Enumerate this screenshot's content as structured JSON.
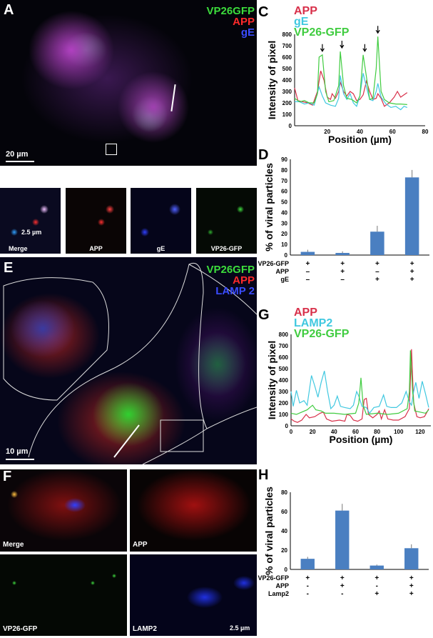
{
  "panels": {
    "A": {
      "label": "A",
      "legend": [
        "VP26GFP",
        "APP",
        "gE"
      ],
      "legend_colors": [
        "#3cdc3c",
        "#ff2a2a",
        "#3a4cff"
      ],
      "scale": "20 µm"
    },
    "B": {
      "label": "B",
      "tiles": [
        "Merge",
        "APP",
        "gE",
        "VP26-GFP"
      ],
      "scale": "2.5 µm"
    },
    "E": {
      "label": "E",
      "legend": [
        "VP26GFP",
        "APP",
        "LAMP 2"
      ],
      "legend_colors": [
        "#3cdc3c",
        "#ff2a2a",
        "#3a4cff"
      ],
      "scale": "10 µm"
    },
    "F": {
      "label": "F",
      "tiles": [
        "Merge",
        "APP",
        "VP26-GFP",
        "LAMP2"
      ],
      "scale": "2.5 µm"
    },
    "C": {
      "label": "C"
    },
    "D": {
      "label": "D"
    },
    "G": {
      "label": "G"
    },
    "H": {
      "label": "H"
    }
  },
  "chart_data": [
    {
      "id": "C",
      "type": "line",
      "xlabel": "Position (µm)",
      "ylabel": "Intensity of pixel",
      "xlim": [
        0,
        80
      ],
      "ylim": [
        0,
        800
      ],
      "xticks": [
        20,
        40,
        60,
        80
      ],
      "yticks": [
        0,
        100,
        200,
        300,
        400,
        500,
        600,
        700,
        800
      ],
      "legend_placement": "top-left",
      "annotations": "arrows at peaks x≈17,29,43,51",
      "arrow_x": [
        17,
        29,
        43,
        51
      ],
      "series": [
        {
          "name": "APP",
          "color": "#d8304a",
          "points": [
            [
              0,
              330
            ],
            [
              2,
              220
            ],
            [
              5,
              210
            ],
            [
              8,
              200
            ],
            [
              11,
              180
            ],
            [
              14,
              300
            ],
            [
              16,
              480
            ],
            [
              18,
              400
            ],
            [
              20,
              250
            ],
            [
              22,
              230
            ],
            [
              23,
              280
            ],
            [
              25,
              240
            ],
            [
              27,
              300
            ],
            [
              28,
              380
            ],
            [
              30,
              300
            ],
            [
              32,
              260
            ],
            [
              34,
              300
            ],
            [
              36,
              280
            ],
            [
              38,
              220
            ],
            [
              40,
              230
            ],
            [
              42,
              270
            ],
            [
              44,
              390
            ],
            [
              46,
              300
            ],
            [
              48,
              230
            ],
            [
              50,
              240
            ],
            [
              51,
              280
            ],
            [
              53,
              240
            ],
            [
              55,
              170
            ],
            [
              58,
              200
            ],
            [
              61,
              250
            ],
            [
              63,
              300
            ],
            [
              65,
              250
            ],
            [
              67,
              270
            ],
            [
              69,
              290
            ]
          ]
        },
        {
          "name": "gE",
          "color": "#40c8e0",
          "points": [
            [
              0,
              210
            ],
            [
              3,
              210
            ],
            [
              6,
              190
            ],
            [
              9,
              200
            ],
            [
              12,
              180
            ],
            [
              15,
              340
            ],
            [
              17,
              260
            ],
            [
              19,
              200
            ],
            [
              22,
              180
            ],
            [
              25,
              170
            ],
            [
              27,
              240
            ],
            [
              28,
              440
            ],
            [
              30,
              280
            ],
            [
              32,
              230
            ],
            [
              34,
              280
            ],
            [
              36,
              200
            ],
            [
              38,
              170
            ],
            [
              40,
              260
            ],
            [
              42,
              460
            ],
            [
              44,
              340
            ],
            [
              46,
              230
            ],
            [
              48,
              220
            ],
            [
              50,
              300
            ],
            [
              51,
              370
            ],
            [
              53,
              250
            ],
            [
              56,
              190
            ],
            [
              59,
              160
            ],
            [
              62,
              170
            ],
            [
              65,
              140
            ],
            [
              67,
              170
            ],
            [
              69,
              160
            ]
          ]
        },
        {
          "name": "VP26-GFP",
          "color": "#40cc40",
          "points": [
            [
              0,
              240
            ],
            [
              3,
              210
            ],
            [
              6,
              220
            ],
            [
              9,
              200
            ],
            [
              12,
              200
            ],
            [
              14,
              280
            ],
            [
              15,
              600
            ],
            [
              17,
              620
            ],
            [
              19,
              300
            ],
            [
              21,
              210
            ],
            [
              24,
              220
            ],
            [
              27,
              350
            ],
            [
              28,
              650
            ],
            [
              30,
              350
            ],
            [
              32,
              240
            ],
            [
              35,
              230
            ],
            [
              38,
              200
            ],
            [
              40,
              260
            ],
            [
              42,
              620
            ],
            [
              44,
              430
            ],
            [
              46,
              230
            ],
            [
              48,
              240
            ],
            [
              50,
              500
            ],
            [
              51,
              780
            ],
            [
              53,
              300
            ],
            [
              55,
              230
            ],
            [
              58,
              200
            ],
            [
              62,
              190
            ],
            [
              65,
              190
            ],
            [
              69,
              185
            ]
          ]
        }
      ]
    },
    {
      "id": "D",
      "type": "bar",
      "ylabel": "% of viral particles",
      "ylim": [
        0,
        90
      ],
      "yticks": [
        0,
        10,
        20,
        30,
        40,
        50,
        60,
        70,
        80,
        90
      ],
      "bar_color": "#4a7fc1",
      "values": [
        3,
        2,
        22,
        73
      ],
      "errors": [
        2,
        1.5,
        5.5,
        7
      ],
      "conditions": [
        {
          "name": "VP26-GFP",
          "signs": [
            "+",
            "+",
            "+",
            "+"
          ]
        },
        {
          "name": "APP",
          "signs": [
            "–",
            "+",
            "–",
            "+"
          ]
        },
        {
          "name": "gE",
          "signs": [
            "–",
            "–",
            "+",
            "+"
          ]
        }
      ]
    },
    {
      "id": "G",
      "type": "line",
      "xlabel": "Position (µm)",
      "ylabel": "Intensity of pixel",
      "xlim": [
        0,
        130
      ],
      "ylim": [
        0,
        800
      ],
      "xticks": [
        0,
        20,
        40,
        60,
        80,
        100,
        120
      ],
      "yticks": [
        0,
        100,
        200,
        300,
        400,
        500,
        600,
        700,
        800
      ],
      "legend_placement": "top-left",
      "series": [
        {
          "name": "APP",
          "color": "#d8304a",
          "points": [
            [
              0,
              60
            ],
            [
              3,
              40
            ],
            [
              6,
              30
            ],
            [
              10,
              50
            ],
            [
              14,
              100
            ],
            [
              17,
              70
            ],
            [
              22,
              80
            ],
            [
              27,
              110
            ],
            [
              30,
              120
            ],
            [
              33,
              60
            ],
            [
              38,
              40
            ],
            [
              45,
              50
            ],
            [
              50,
              40
            ],
            [
              52,
              100
            ],
            [
              55,
              90
            ],
            [
              58,
              50
            ],
            [
              62,
              40
            ],
            [
              66,
              60
            ],
            [
              68,
              230
            ],
            [
              70,
              240
            ],
            [
              72,
              100
            ],
            [
              76,
              70
            ],
            [
              80,
              100
            ],
            [
              82,
              130
            ],
            [
              84,
              60
            ],
            [
              87,
              140
            ],
            [
              90,
              60
            ],
            [
              95,
              50
            ],
            [
              100,
              50
            ],
            [
              106,
              80
            ],
            [
              110,
              150
            ],
            [
              112,
              670
            ],
            [
              114,
              200
            ],
            [
              117,
              80
            ],
            [
              120,
              70
            ],
            [
              124,
              80
            ],
            [
              127,
              130
            ],
            [
              128,
              150
            ]
          ]
        },
        {
          "name": "LAMP2",
          "color": "#40c8e0",
          "points": [
            [
              0,
              300
            ],
            [
              2,
              170
            ],
            [
              5,
              310
            ],
            [
              8,
              200
            ],
            [
              12,
              220
            ],
            [
              15,
              180
            ],
            [
              19,
              440
            ],
            [
              22,
              350
            ],
            [
              25,
              250
            ],
            [
              28,
              380
            ],
            [
              31,
              480
            ],
            [
              34,
              300
            ],
            [
              37,
              150
            ],
            [
              40,
              180
            ],
            [
              43,
              260
            ],
            [
              46,
              170
            ],
            [
              50,
              160
            ],
            [
              55,
              150
            ],
            [
              58,
              180
            ],
            [
              61,
              300
            ],
            [
              63,
              260
            ],
            [
              66,
              170
            ],
            [
              70,
              160
            ],
            [
              73,
              110
            ],
            [
              77,
              160
            ],
            [
              82,
              170
            ],
            [
              86,
              270
            ],
            [
              89,
              170
            ],
            [
              93,
              160
            ],
            [
              98,
              160
            ],
            [
              103,
              200
            ],
            [
              107,
              300
            ],
            [
              110,
              210
            ],
            [
              112,
              180
            ],
            [
              114,
              300
            ],
            [
              116,
              380
            ],
            [
              119,
              240
            ],
            [
              122,
              390
            ],
            [
              125,
              280
            ],
            [
              128,
              160
            ]
          ]
        },
        {
          "name": "VP26-GFP",
          "color": "#40cc40",
          "points": [
            [
              0,
              110
            ],
            [
              5,
              100
            ],
            [
              10,
              120
            ],
            [
              15,
              140
            ],
            [
              20,
              180
            ],
            [
              23,
              140
            ],
            [
              28,
              130
            ],
            [
              32,
              110
            ],
            [
              40,
              110
            ],
            [
              50,
              100
            ],
            [
              60,
              110
            ],
            [
              63,
              200
            ],
            [
              65,
              420
            ],
            [
              67,
              180
            ],
            [
              70,
              100
            ],
            [
              80,
              110
            ],
            [
              90,
              100
            ],
            [
              100,
              110
            ],
            [
              108,
              150
            ],
            [
              110,
              300
            ],
            [
              111,
              660
            ],
            [
              113,
              300
            ],
            [
              115,
              130
            ],
            [
              120,
              120
            ],
            [
              125,
              110
            ],
            [
              128,
              140
            ]
          ]
        }
      ]
    },
    {
      "id": "H",
      "type": "bar",
      "ylabel": "% of viral particles",
      "ylim": [
        0,
        80
      ],
      "yticks": [
        0,
        20,
        40,
        60,
        80
      ],
      "bar_color": "#4a7fc1",
      "values": [
        11,
        61,
        4,
        22
      ],
      "errors": [
        2,
        7,
        1,
        4
      ],
      "conditions": [
        {
          "name": "VP26-GFP",
          "signs": [
            "+",
            "+",
            "+",
            "+"
          ]
        },
        {
          "name": "APP",
          "signs": [
            "-",
            "+",
            "-",
            "+"
          ]
        },
        {
          "name": "Lamp2",
          "signs": [
            "-",
            "-",
            "+",
            "+"
          ]
        }
      ]
    }
  ]
}
